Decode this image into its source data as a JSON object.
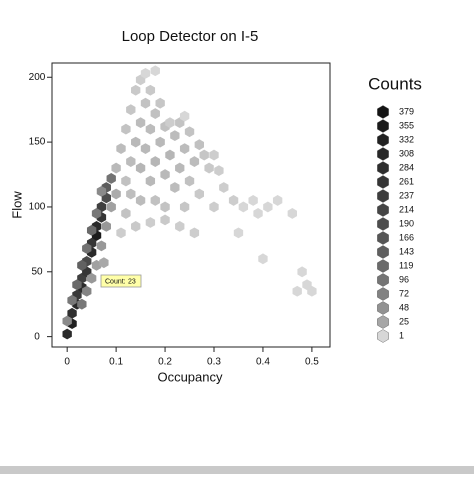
{
  "chart_data": {
    "type": "hexbin",
    "title": "Loop Detector on I-5",
    "x_label": "Occupancy",
    "y_label": "Flow",
    "xlim": [
      -0.031,
      0.537
    ],
    "ylim": [
      -8,
      211
    ],
    "xticks": [
      0,
      0.1,
      0.2,
      0.3,
      0.4,
      0.5
    ],
    "yticks": [
      0,
      50,
      100,
      150,
      200
    ],
    "legend": {
      "title": "Counts",
      "levels": [
        379,
        355,
        332,
        308,
        284,
        261,
        237,
        214,
        190,
        166,
        143,
        119,
        96,
        72,
        48,
        25,
        1
      ]
    },
    "tooltip": {
      "label": "Count:",
      "value": 23
    },
    "hexes": [
      [
        0.0,
        2,
        300
      ],
      [
        0.01,
        10,
        330
      ],
      [
        0.01,
        18,
        280
      ],
      [
        0.02,
        25,
        300
      ],
      [
        0.02,
        32,
        250
      ],
      [
        0.03,
        38,
        290
      ],
      [
        0.03,
        45,
        230
      ],
      [
        0.04,
        50,
        260
      ],
      [
        0.04,
        58,
        200
      ],
      [
        0.05,
        65,
        300
      ],
      [
        0.05,
        72,
        260
      ],
      [
        0.06,
        78,
        350
      ],
      [
        0.06,
        85,
        300
      ],
      [
        0.07,
        92,
        260
      ],
      [
        0.07,
        100,
        230
      ],
      [
        0.08,
        107,
        190
      ],
      [
        0.08,
        115,
        150
      ],
      [
        0.09,
        122,
        100
      ],
      [
        0.0,
        12,
        60
      ],
      [
        0.01,
        28,
        90
      ],
      [
        0.02,
        40,
        120
      ],
      [
        0.03,
        55,
        140
      ],
      [
        0.04,
        68,
        100
      ],
      [
        0.05,
        82,
        120
      ],
      [
        0.06,
        95,
        90
      ],
      [
        0.07,
        112,
        60
      ],
      [
        0.03,
        25,
        90
      ],
      [
        0.04,
        35,
        70
      ],
      [
        0.05,
        45,
        40
      ],
      [
        0.06,
        55,
        30
      ],
      [
        0.075,
        57,
        23
      ],
      [
        0.07,
        70,
        40
      ],
      [
        0.08,
        85,
        40
      ],
      [
        0.09,
        100,
        30
      ],
      [
        0.1,
        110,
        20
      ],
      [
        0.1,
        130,
        10
      ],
      [
        0.11,
        145,
        8
      ],
      [
        0.12,
        160,
        5
      ],
      [
        0.13,
        175,
        4
      ],
      [
        0.14,
        190,
        3
      ],
      [
        0.15,
        198,
        2
      ],
      [
        0.16,
        203,
        1
      ],
      [
        0.18,
        205,
        1
      ],
      [
        0.12,
        120,
        6
      ],
      [
        0.13,
        135,
        8
      ],
      [
        0.14,
        150,
        10
      ],
      [
        0.15,
        165,
        8
      ],
      [
        0.16,
        180,
        5
      ],
      [
        0.17,
        190,
        3
      ],
      [
        0.15,
        130,
        12
      ],
      [
        0.16,
        145,
        10
      ],
      [
        0.17,
        160,
        8
      ],
      [
        0.18,
        172,
        6
      ],
      [
        0.19,
        180,
        4
      ],
      [
        0.17,
        120,
        10
      ],
      [
        0.18,
        135,
        12
      ],
      [
        0.19,
        150,
        10
      ],
      [
        0.2,
        162,
        6
      ],
      [
        0.2,
        125,
        10
      ],
      [
        0.21,
        140,
        12
      ],
      [
        0.22,
        155,
        8
      ],
      [
        0.23,
        165,
        5
      ],
      [
        0.22,
        115,
        8
      ],
      [
        0.23,
        130,
        10
      ],
      [
        0.24,
        145,
        8
      ],
      [
        0.25,
        158,
        5
      ],
      [
        0.25,
        120,
        6
      ],
      [
        0.26,
        135,
        8
      ],
      [
        0.27,
        148,
        6
      ],
      [
        0.28,
        140,
        4
      ],
      [
        0.29,
        130,
        3
      ],
      [
        0.3,
        140,
        2
      ],
      [
        0.31,
        128,
        2
      ],
      [
        0.32,
        115,
        2
      ],
      [
        0.27,
        110,
        3
      ],
      [
        0.24,
        100,
        4
      ],
      [
        0.2,
        100,
        5
      ],
      [
        0.18,
        105,
        6
      ],
      [
        0.15,
        105,
        8
      ],
      [
        0.12,
        95,
        5
      ],
      [
        0.14,
        85,
        3
      ],
      [
        0.17,
        88,
        2
      ],
      [
        0.2,
        90,
        3
      ],
      [
        0.23,
        85,
        2
      ],
      [
        0.26,
        80,
        2
      ],
      [
        0.34,
        105,
        2
      ],
      [
        0.36,
        100,
        1
      ],
      [
        0.38,
        105,
        1
      ],
      [
        0.39,
        95,
        1
      ],
      [
        0.41,
        100,
        1
      ],
      [
        0.43,
        105,
        1
      ],
      [
        0.46,
        95,
        1
      ],
      [
        0.48,
        50,
        1
      ],
      [
        0.5,
        35,
        1
      ],
      [
        0.49,
        40,
        1
      ],
      [
        0.47,
        35,
        1
      ],
      [
        0.4,
        60,
        1
      ],
      [
        0.35,
        80,
        1
      ],
      [
        0.3,
        100,
        2
      ],
      [
        0.11,
        80,
        2
      ],
      [
        0.13,
        110,
        7
      ],
      [
        0.21,
        165,
        2
      ],
      [
        0.24,
        170,
        1
      ]
    ]
  }
}
